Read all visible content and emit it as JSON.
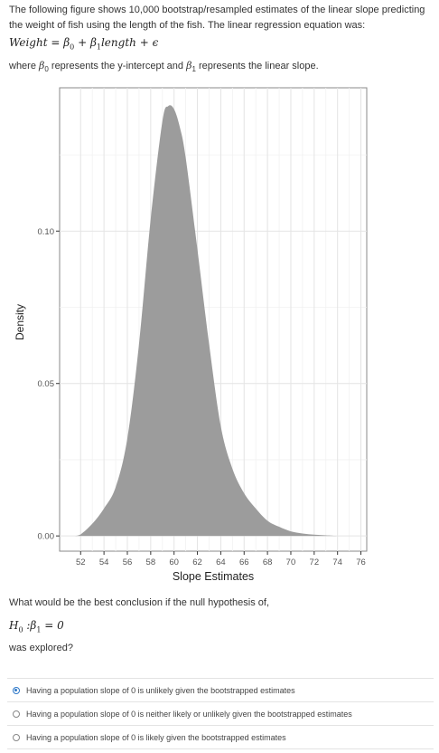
{
  "intro": "The following figure shows 10,000 bootstrap/resampled estimates of the linear slope predicting the weight of fish using the length of the fish. The linear regression equation was:",
  "equation": {
    "lhs": "Weight",
    "equals": " = ",
    "b0": "β",
    "b0_sub": "0",
    "plus1": " + ",
    "b1": "β",
    "b1_sub": "1",
    "term": "length",
    "plus2": " + ",
    "eps": "ϵ"
  },
  "where": {
    "pre": "where ",
    "b0": "β",
    "b0_sub": "0",
    "mid": " represents the y-intercept and ",
    "b1": "β",
    "b1_sub": "1",
    "post": " represents the linear slope."
  },
  "chart_data": {
    "type": "area",
    "xlabel": "Slope Estimates",
    "ylabel": "Density",
    "xlim": [
      50.2,
      76.5
    ],
    "ylim": [
      -0.005,
      0.147
    ],
    "x_ticks": [
      52,
      54,
      56,
      58,
      60,
      62,
      64,
      66,
      68,
      70,
      72,
      74,
      76
    ],
    "y_ticks": [
      0.0,
      0.05,
      0.1
    ],
    "y_tick_labels": [
      "0.00",
      "0.05",
      "0.10"
    ],
    "grid": true,
    "fill_color": "#9c9c9c",
    "x": [
      51.5,
      52,
      53,
      54,
      55,
      56,
      57,
      58,
      59,
      59.5,
      60,
      60.5,
      61,
      62,
      63,
      64,
      65,
      66,
      67,
      68,
      69,
      70,
      71,
      72,
      73,
      74
    ],
    "y": [
      0.0,
      0.0005,
      0.004,
      0.009,
      0.016,
      0.032,
      0.063,
      0.104,
      0.136,
      0.141,
      0.14,
      0.134,
      0.124,
      0.094,
      0.063,
      0.036,
      0.022,
      0.014,
      0.009,
      0.005,
      0.003,
      0.0015,
      0.0008,
      0.0004,
      0.0002,
      0.0
    ]
  },
  "question": "What would be the best conclusion if the null hypothesis of,",
  "h0": {
    "h": "H",
    "h_sub": "0",
    "colon": " :",
    "b": "β",
    "b_sub": "1",
    "rest": " = 0"
  },
  "explored": "was explored?",
  "options": [
    {
      "label": "Having a population slope of 0 is unlikely given the bootstrapped estimates",
      "selected": true
    },
    {
      "label": "Having a population slope of 0 is neither likely or unlikely given the bootstrapped estimates",
      "selected": false
    },
    {
      "label": "Having a population slope of 0 is likely given the bootstrapped estimates",
      "selected": false
    }
  ],
  "colors": {
    "accent": "#2f79c9",
    "density_fill": "#9c9c9c"
  }
}
